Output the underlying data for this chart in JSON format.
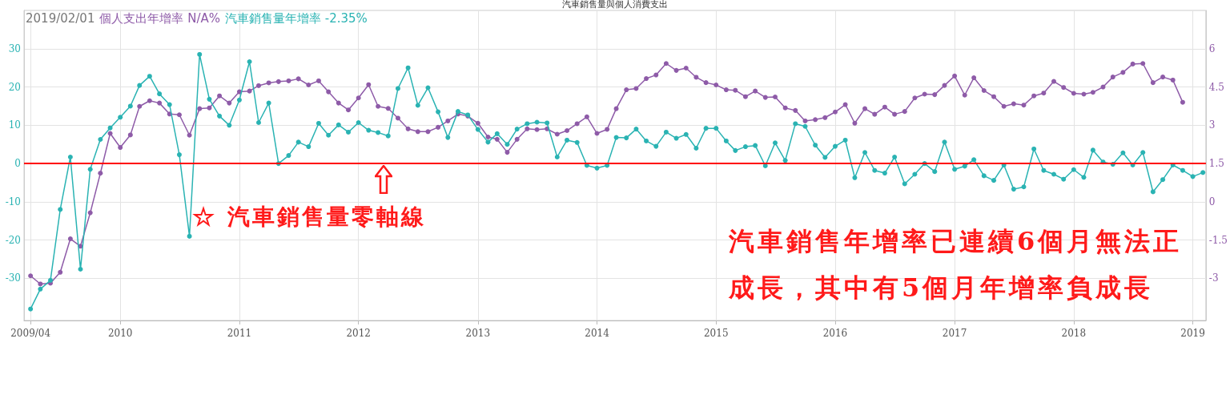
{
  "chart_data": {
    "type": "line",
    "title": "汽車銷售量與個人消費支出",
    "x": [
      "2009-04",
      "2009-05",
      "2009-06",
      "2009-07",
      "2009-08",
      "2009-09",
      "2009-10",
      "2009-11",
      "2009-12",
      "2010-01",
      "2010-02",
      "2010-03",
      "2010-04",
      "2010-05",
      "2010-06",
      "2010-07",
      "2010-08",
      "2010-09",
      "2010-10",
      "2010-11",
      "2010-12",
      "2011-01",
      "2011-02",
      "2011-03",
      "2011-04",
      "2011-05",
      "2011-06",
      "2011-07",
      "2011-08",
      "2011-09",
      "2011-10",
      "2011-11",
      "2011-12",
      "2012-01",
      "2012-02",
      "2012-03",
      "2012-04",
      "2012-05",
      "2012-06",
      "2012-07",
      "2012-08",
      "2012-09",
      "2012-10",
      "2012-11",
      "2012-12",
      "2013-01",
      "2013-02",
      "2013-03",
      "2013-04",
      "2013-05",
      "2013-06",
      "2013-07",
      "2013-08",
      "2013-09",
      "2013-10",
      "2013-11",
      "2013-12",
      "2014-01",
      "2014-02",
      "2014-03",
      "2014-04",
      "2014-05",
      "2014-06",
      "2014-07",
      "2014-08",
      "2014-09",
      "2014-10",
      "2014-11",
      "2014-12",
      "2015-01",
      "2015-02",
      "2015-03",
      "2015-04",
      "2015-05",
      "2015-06",
      "2015-07",
      "2015-08",
      "2015-09",
      "2015-10",
      "2015-11",
      "2015-12",
      "2016-01",
      "2016-02",
      "2016-03",
      "2016-04",
      "2016-05",
      "2016-06",
      "2016-07",
      "2016-08",
      "2016-09",
      "2016-10",
      "2016-11",
      "2016-12",
      "2017-01",
      "2017-02",
      "2017-03",
      "2017-04",
      "2017-05",
      "2017-06",
      "2017-07",
      "2017-08",
      "2017-09",
      "2017-10",
      "2017-11",
      "2017-12",
      "2018-01",
      "2018-02",
      "2018-03",
      "2018-04",
      "2018-05",
      "2018-06",
      "2018-07",
      "2018-08",
      "2018-09",
      "2018-10",
      "2018-11",
      "2018-12",
      "2019-01",
      "2019-02"
    ],
    "series": [
      {
        "name": "個人支出年增率",
        "color": "#8e5ba8",
        "axis": "y2",
        "values": [
          -2.9,
          -3.22,
          -3.19,
          -2.76,
          -1.45,
          -1.74,
          -0.43,
          1.12,
          2.68,
          2.13,
          2.62,
          3.74,
          3.96,
          3.87,
          3.44,
          3.41,
          2.61,
          3.65,
          3.68,
          4.15,
          3.87,
          4.31,
          4.34,
          4.55,
          4.66,
          4.71,
          4.74,
          4.82,
          4.58,
          4.74,
          4.31,
          3.87,
          3.6,
          4.07,
          4.59,
          3.74,
          3.66,
          3.28,
          2.86,
          2.75,
          2.75,
          2.92,
          3.17,
          3.44,
          3.36,
          3.08,
          2.54,
          2.45,
          1.94,
          2.45,
          2.86,
          2.83,
          2.86,
          2.65,
          2.79,
          3.06,
          3.33,
          2.68,
          2.84,
          3.65,
          4.39,
          4.44,
          4.83,
          4.97,
          5.42,
          5.15,
          5.24,
          4.88,
          4.67,
          4.58,
          4.39,
          4.37,
          4.12,
          4.34,
          4.09,
          4.11,
          3.68,
          3.58,
          3.17,
          3.22,
          3.3,
          3.52,
          3.81,
          3.08,
          3.65,
          3.43,
          3.71,
          3.43,
          3.54,
          4.07,
          4.22,
          4.2,
          4.56,
          4.93,
          4.18,
          4.86,
          4.36,
          4.12,
          3.74,
          3.84,
          3.79,
          4.15,
          4.26,
          4.72,
          4.48,
          4.25,
          4.22,
          4.29,
          4.5,
          4.89,
          5.07,
          5.4,
          5.42,
          4.67,
          4.89,
          4.77,
          3.9,
          null,
          null
        ]
      },
      {
        "name": "汽車銷售量年增率",
        "color": "#2ab3b3",
        "values": [
          -38,
          -32.8,
          -30.5,
          -12,
          1.7,
          -27.6,
          -1.5,
          6.3,
          9.3,
          12.1,
          15,
          20.4,
          22.8,
          18.2,
          15.4,
          2.3,
          -19,
          28.5,
          16.8,
          12.4,
          10,
          16.6,
          26.6,
          10.7,
          15.8,
          0,
          2.1,
          5.6,
          4.4,
          10.5,
          7.4,
          10.1,
          8.2,
          10.7,
          8.7,
          8.1,
          7.2,
          19.6,
          25,
          15.2,
          19.8,
          13.5,
          6.8,
          13.6,
          12.7,
          8.9,
          5.6,
          7.8,
          5,
          9,
          10.4,
          10.8,
          10.6,
          1.7,
          6.1,
          5.5,
          -0.5,
          -1.2,
          -0.5,
          6.8,
          6.7,
          9,
          5.9,
          4.5,
          8.2,
          6.6,
          7.6,
          4,
          9.2,
          9.2,
          5.9,
          3.4,
          4.4,
          4.7,
          -0.6,
          5.4,
          0.8,
          10.4,
          9.7,
          4.8,
          1.6,
          4.5,
          6.1,
          -3.7,
          2.9,
          -1.8,
          -2.5,
          1.7,
          -5.3,
          -2.8,
          0,
          -2.1,
          5.6,
          -1.5,
          -0.7,
          1,
          -3.2,
          -4.4,
          -0.4,
          -6.7,
          -6.1,
          3.8,
          -1.8,
          -2.8,
          -4.1,
          -1.6,
          -3.6,
          3.5,
          0.4,
          -0.2,
          2.8,
          -0.4,
          2.9,
          -7.4,
          -4.2,
          -0.4,
          -1.8,
          -3.4,
          -2.35
        ]
      }
    ],
    "xlim": [
      "2009-03-12",
      "2019-02-10"
    ],
    "xticks": [
      {
        "value": "2009-04",
        "label": "2009/04"
      },
      {
        "value": "2010",
        "label": "2010"
      },
      {
        "value": "2011",
        "label": "2011"
      },
      {
        "value": "2012",
        "label": "2012"
      },
      {
        "value": "2013",
        "label": "2013"
      },
      {
        "value": "2014",
        "label": "2014"
      },
      {
        "value": "2015",
        "label": "2015"
      },
      {
        "value": "2016",
        "label": "2016"
      },
      {
        "value": "2017",
        "label": "2017"
      },
      {
        "value": "2018",
        "label": "2018"
      },
      {
        "value": "2019",
        "label": "2019"
      }
    ],
    "ylim": [
      -41,
      40
    ],
    "yticks": [
      -30,
      -20,
      -10,
      0,
      10,
      20,
      30
    ],
    "y2lim": [
      -4.65,
      7.5
    ],
    "y2ticks": [
      -3,
      -1.5,
      0,
      1.5,
      3,
      4.5,
      6
    ],
    "ref_lines": [
      {
        "axis": "y",
        "value": 0,
        "color": "#ff0000"
      }
    ],
    "annotations": [
      "2019/02/01",
      "N/A%",
      "-2.35%",
      "☆ 汽車銷售量零軸線",
      "汽車銷售年增率已連續6個月無法正成長，其中有5個月年增率負成長"
    ],
    "grid": true,
    "marker": "circle",
    "line_style": "solid"
  }
}
